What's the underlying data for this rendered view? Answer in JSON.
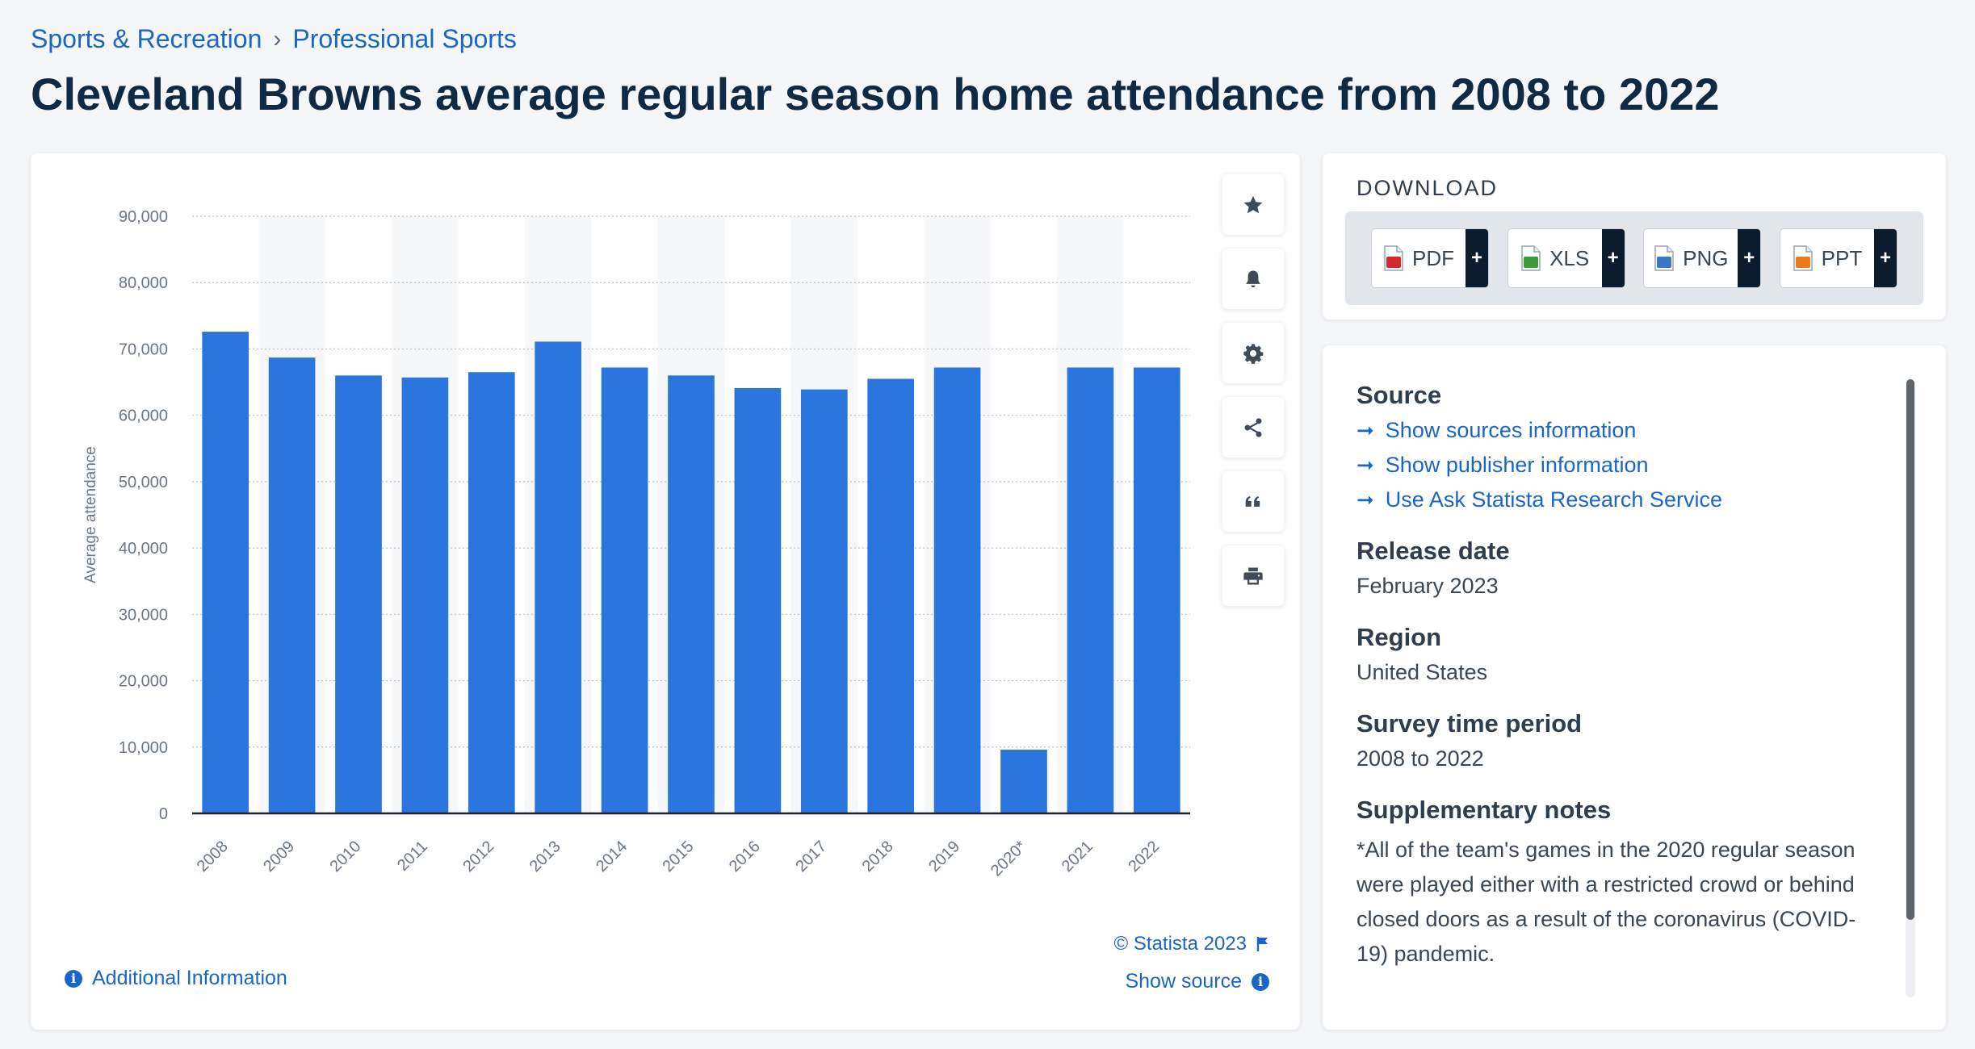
{
  "breadcrumb": {
    "items": [
      "Sports & Recreation",
      "Professional Sports"
    ],
    "separator": "›"
  },
  "title": "Cleveland Browns average regular season home attendance from 2008 to 2022",
  "chart_data": {
    "type": "bar",
    "title": "",
    "xlabel": "",
    "ylabel": "Average attendance",
    "categories": [
      "2008",
      "2009",
      "2010",
      "2011",
      "2012",
      "2013",
      "2014",
      "2015",
      "2016",
      "2017",
      "2018",
      "2019",
      "2020*",
      "2021",
      "2022"
    ],
    "values": [
      72600,
      68700,
      66000,
      65700,
      66500,
      71100,
      67200,
      66000,
      64100,
      63900,
      65500,
      67200,
      9600,
      67200,
      67200
    ],
    "ylim": [
      0,
      90000
    ],
    "yticks": [
      0,
      10000,
      20000,
      30000,
      40000,
      50000,
      60000,
      70000,
      80000,
      90000
    ],
    "ytick_labels": [
      "0",
      "10,000",
      "20,000",
      "30,000",
      "40,000",
      "50,000",
      "60,000",
      "70,000",
      "80,000",
      "90,000"
    ],
    "grid": true,
    "bar_color": "#2a75de"
  },
  "chart_footer": {
    "credit": "© Statista 2023",
    "show_source": "Show source",
    "additional_info": "Additional Information"
  },
  "tools": [
    "star-icon",
    "bell-icon",
    "gear-icon",
    "share-icon",
    "quote-icon",
    "print-icon"
  ],
  "download": {
    "heading": "DOWNLOAD",
    "buttons": [
      {
        "label": "PDF",
        "color": "#d8262f"
      },
      {
        "label": "XLS",
        "color": "#3c9a36"
      },
      {
        "label": "PNG",
        "color": "#3b78c4"
      },
      {
        "label": "PPT",
        "color": "#e97b1f"
      }
    ],
    "plus": "+"
  },
  "info": {
    "source_heading": "Source",
    "links": [
      "Show sources information",
      "Show publisher information",
      "Use Ask Statista Research Service"
    ],
    "release_heading": "Release date",
    "release_value": "February 2023",
    "region_heading": "Region",
    "region_value": "United States",
    "period_heading": "Survey time period",
    "period_value": "2008 to 2022",
    "notes_heading": "Supplementary notes",
    "notes_value": "*All of the team's games in the 2020 regular season were played either with a restricted crowd or behind closed doors as a result of the coronavirus (COVID-19) pandemic."
  }
}
